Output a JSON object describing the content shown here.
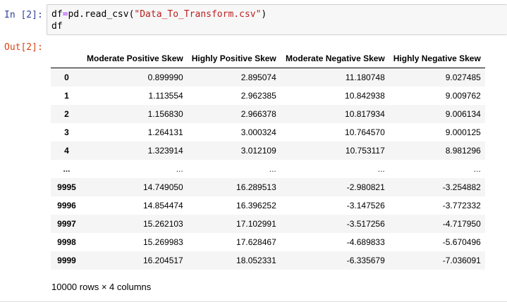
{
  "cell": {
    "in_prompt": "In [2]:",
    "code_line1_pre": "df",
    "code_line1_op": "=",
    "code_line1_call": "pd.read_csv(",
    "code_line1_str": "\"Data_To_Transform.csv\"",
    "code_line1_close": ")",
    "code_line2": "df",
    "out_prompt": "Out[2]:"
  },
  "table": {
    "columns": [
      "Moderate Positive Skew",
      "Highly Positive Skew",
      "Moderate Negative Skew",
      "Highly Negative Skew"
    ],
    "rows": [
      {
        "index": "0",
        "values": [
          "0.899990",
          "2.895074",
          "11.180748",
          "9.027485"
        ]
      },
      {
        "index": "1",
        "values": [
          "1.113554",
          "2.962385",
          "10.842938",
          "9.009762"
        ]
      },
      {
        "index": "2",
        "values": [
          "1.156830",
          "2.966378",
          "10.817934",
          "9.006134"
        ]
      },
      {
        "index": "3",
        "values": [
          "1.264131",
          "3.000324",
          "10.764570",
          "9.000125"
        ]
      },
      {
        "index": "4",
        "values": [
          "1.323914",
          "3.012109",
          "10.753117",
          "8.981296"
        ]
      },
      {
        "index": "...",
        "values": [
          "...",
          "...",
          "...",
          "..."
        ]
      },
      {
        "index": "9995",
        "values": [
          "14.749050",
          "16.289513",
          "-2.980821",
          "-3.254882"
        ]
      },
      {
        "index": "9996",
        "values": [
          "14.854474",
          "16.396252",
          "-3.147526",
          "-3.772332"
        ]
      },
      {
        "index": "9997",
        "values": [
          "15.262103",
          "17.102991",
          "-3.517256",
          "-4.717950"
        ]
      },
      {
        "index": "9998",
        "values": [
          "15.269983",
          "17.628467",
          "-4.689833",
          "-5.670496"
        ]
      },
      {
        "index": "9999",
        "values": [
          "16.204517",
          "18.052331",
          "-6.335679",
          "-7.036091"
        ]
      }
    ]
  },
  "summary": "10000 rows × 4 columns"
}
